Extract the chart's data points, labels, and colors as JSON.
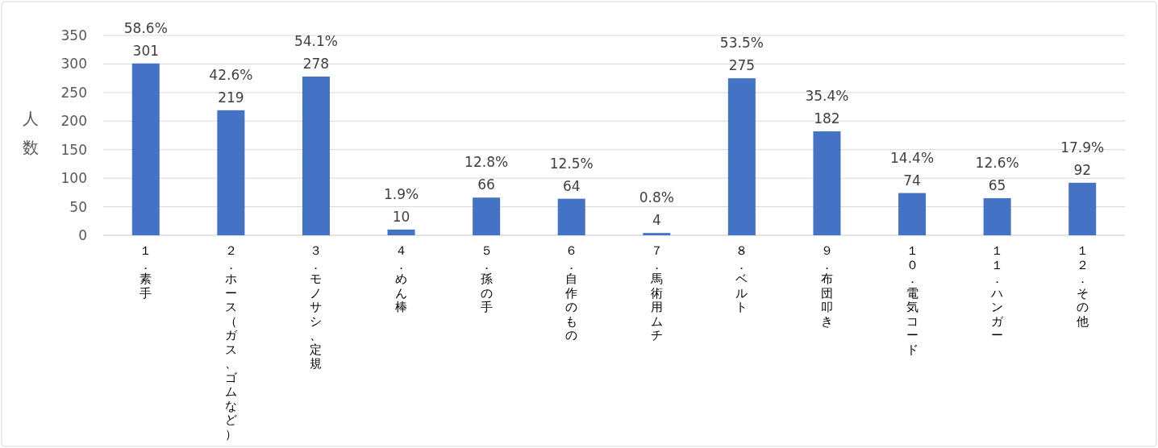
{
  "chart_data": {
    "type": "bar",
    "ylabel": "人数",
    "categories": [
      "１．素手",
      "２．ホース（ガス、ゴムなど）",
      "３．モノサシ、定規",
      "４．めん棒",
      "５．孫の手",
      "６．自作のもの",
      "７．馬術用ムチ",
      "８．ベルト",
      "９．布団叩き",
      "１０．電気コード",
      "１１．ハンガー",
      "１２．その他"
    ],
    "values": [
      301,
      219,
      278,
      10,
      66,
      64,
      4,
      275,
      182,
      74,
      65,
      92
    ],
    "value_labels": [
      "58.6%\n301",
      "42.6%\n219",
      "54.1%\n278",
      "1.9%\n10",
      "12.8%\n66",
      "12.5%\n64",
      "0.8%\n4",
      "53.5%\n275",
      "35.4%\n182",
      "14.4%\n74",
      "12.6%\n65",
      "17.9%\n92"
    ],
    "color": "#4472c4",
    "ylim": [
      0,
      350
    ],
    "yticks": [
      0,
      50,
      100,
      150,
      200,
      250,
      300,
      350
    ],
    "grid": "y"
  }
}
